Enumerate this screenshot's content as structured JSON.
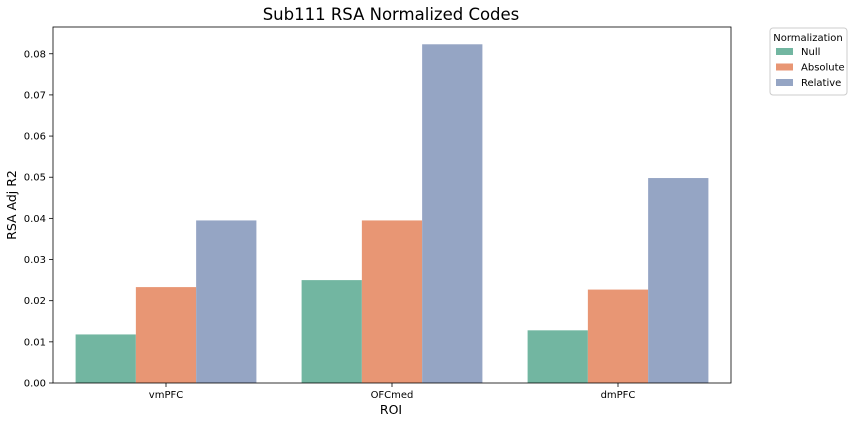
{
  "chart_data": {
    "type": "bar",
    "title": "Sub111 RSA Normalized Codes",
    "xlabel": "ROI",
    "ylabel": "RSA Adj R2",
    "categories": [
      "vmPFC",
      "OFCmed",
      "dmPFC"
    ],
    "ylim": [
      0,
      0.0865
    ],
    "yticks": [
      "0.00",
      "0.01",
      "0.02",
      "0.03",
      "0.04",
      "0.05",
      "0.06",
      "0.07",
      "0.08"
    ],
    "grid": false,
    "legend": {
      "title": "Normalization",
      "placement": "outside-top-right"
    },
    "series": [
      {
        "name": "Null",
        "color": "#72b6a1",
        "values": [
          0.0118,
          0.025,
          0.0128
        ]
      },
      {
        "name": "Absolute",
        "color": "#e89674",
        "values": [
          0.0233,
          0.0395,
          0.0227
        ]
      },
      {
        "name": "Relative",
        "color": "#95a5c4",
        "values": [
          0.0395,
          0.0823,
          0.0498
        ]
      }
    ]
  }
}
